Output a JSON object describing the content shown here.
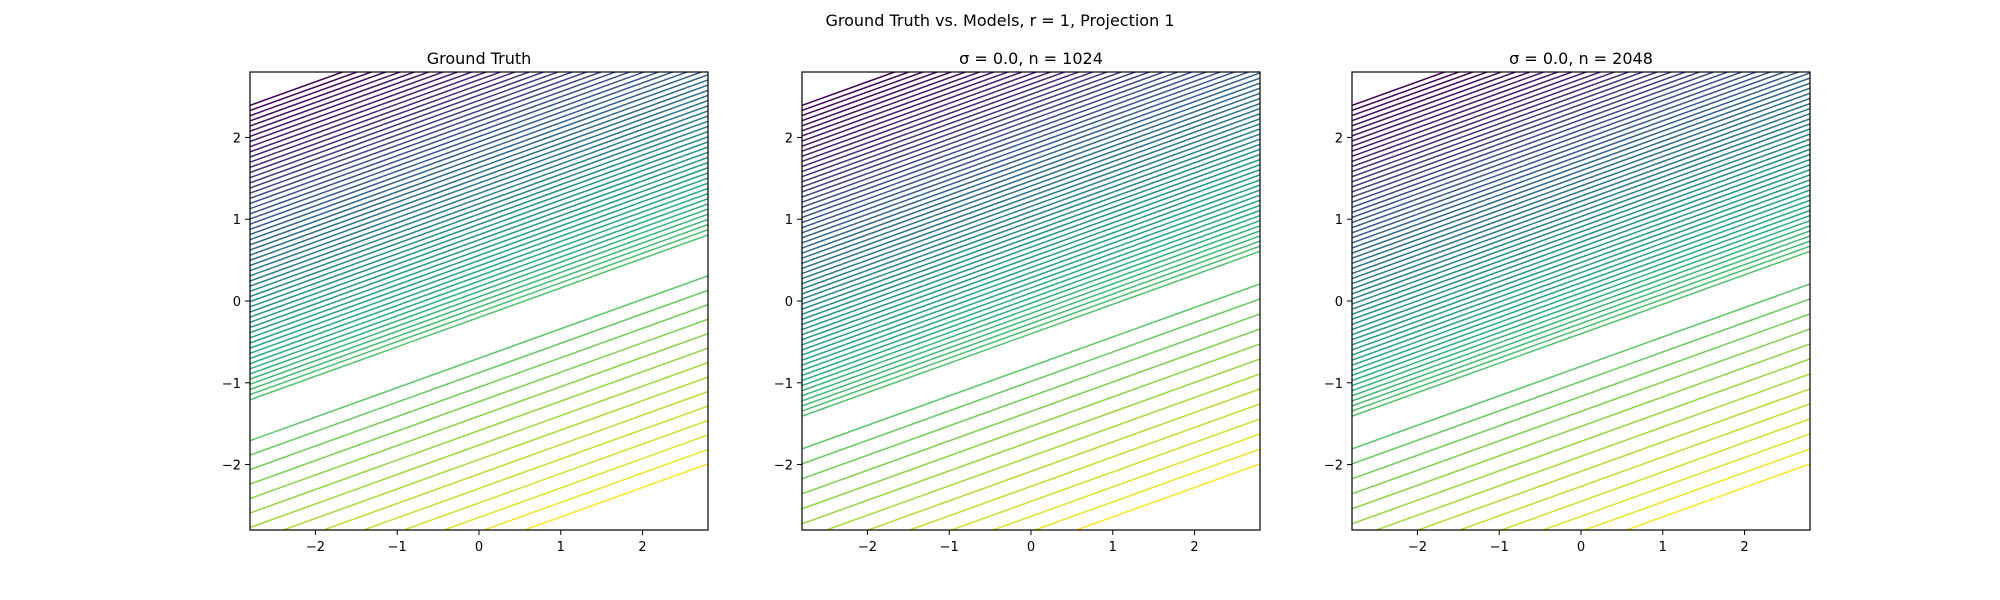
{
  "figure": {
    "suptitle": "Ground Truth vs. Models, r = 1, Projection 1"
  },
  "chart_data": [
    {
      "type": "contour",
      "title": "Ground Truth",
      "xlabel": "",
      "ylabel": "",
      "xlim": [
        -2.8,
        2.8
      ],
      "ylim": [
        -2.8,
        2.8
      ],
      "xticks": [
        -2,
        -1,
        0,
        1,
        2
      ],
      "yticks": [
        -2,
        -1,
        0,
        1,
        2
      ],
      "xtick_labels": [
        "−2",
        "−1",
        "0",
        "1",
        "2"
      ],
      "ytick_labels": [
        "−2",
        "−1",
        "0",
        "1",
        "2"
      ],
      "colormap": "viridis",
      "contour_slope": 0.36,
      "upper_region": {
        "y_from": -0.2,
        "y_to": 2.8,
        "line_count": 58
      },
      "lower_region": {
        "y_from": -2.6,
        "y_to": -0.7,
        "line_count": 14
      },
      "grid": false
    },
    {
      "type": "contour",
      "title": "σ = 0.0, n = 1024",
      "xlabel": "",
      "ylabel": "",
      "xlim": [
        -2.8,
        2.8
      ],
      "ylim": [
        -2.8,
        2.8
      ],
      "xticks": [
        -2,
        -1,
        0,
        1,
        2
      ],
      "yticks": [
        -2,
        -1,
        0,
        1,
        2
      ],
      "xtick_labels": [
        "−2",
        "−1",
        "0",
        "1",
        "2"
      ],
      "ytick_labels": [
        "−2",
        "−1",
        "0",
        "1",
        "2"
      ],
      "colormap": "viridis",
      "contour_slope": 0.36,
      "upper_region": {
        "y_from": -0.4,
        "y_to": 2.8,
        "line_count": 62
      },
      "lower_region": {
        "y_from": -2.6,
        "y_to": -0.8,
        "line_count": 13
      },
      "grid": false
    },
    {
      "type": "contour",
      "title": "σ = 0.0, n = 2048",
      "xlabel": "",
      "ylabel": "",
      "xlim": [
        -2.8,
        2.8
      ],
      "ylim": [
        -2.8,
        2.8
      ],
      "xticks": [
        -2,
        -1,
        0,
        1,
        2
      ],
      "yticks": [
        -2,
        -1,
        0,
        1,
        2
      ],
      "xtick_labels": [
        "−2",
        "−1",
        "0",
        "1",
        "2"
      ],
      "ytick_labels": [
        "−2",
        "−1",
        "0",
        "1",
        "2"
      ],
      "colormap": "viridis",
      "contour_slope": 0.36,
      "upper_region": {
        "y_from": -0.4,
        "y_to": 2.8,
        "line_count": 62
      },
      "lower_region": {
        "y_from": -2.6,
        "y_to": -0.8,
        "line_count": 13
      },
      "grid": false
    }
  ]
}
